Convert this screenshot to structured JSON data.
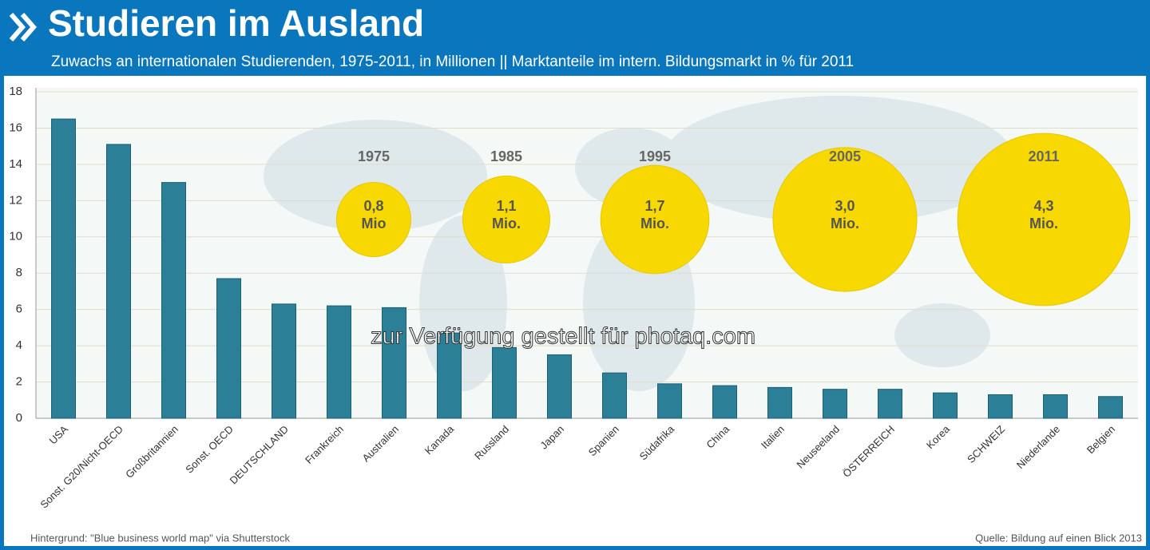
{
  "chart_data": {
    "type": "bar",
    "title": "Studieren im Ausland",
    "subtitle": "Zuwachs an internationalen Studierenden, 1975-2011, in Millionen || Marktanteile im intern. Bildungsmarkt in % für 2011",
    "categories": [
      "USA",
      "Sonst. G20/Nicht-OECD",
      "Großbritannien",
      "Sonst. OECD",
      "DEUTSCHLAND",
      "Frankreich",
      "Australien",
      "Kanada",
      "Russland",
      "Japan",
      "Spanien",
      "Südafrika",
      "China",
      "Italien",
      "Neuseeland",
      "ÖSTERREICH",
      "Korea",
      "SCHWEIZ",
      "Niederlande",
      "Belgien"
    ],
    "values": [
      16.5,
      15.1,
      13.0,
      7.7,
      6.3,
      6.2,
      6.1,
      4.7,
      3.9,
      3.5,
      2.5,
      1.9,
      1.8,
      1.7,
      1.6,
      1.6,
      1.4,
      1.3,
      1.3,
      1.2
    ],
    "color": "#2b7f97",
    "ylim": [
      0,
      18
    ],
    "yticks": [
      0,
      2,
      4,
      6,
      8,
      10,
      12,
      14,
      16,
      18
    ],
    "grid": true,
    "bubbles": {
      "years": [
        "1975",
        "1985",
        "1995",
        "2005",
        "2011"
      ],
      "values": [
        0.8,
        1.1,
        1.7,
        3.0,
        4.3
      ],
      "value_labels": [
        "0,8 Mio",
        "1,1 Mio.",
        "1,7 Mio.",
        "3,0 Mio.",
        "4,3 Mio."
      ],
      "color": "#f7d800"
    },
    "watermark": "zur Verfügung gestellt für photaq.com",
    "background_note": "Hintergrund: \"Blue business world map\" via Shutterstock",
    "source": "Quelle: Bildung auf einen Blick 2013"
  }
}
